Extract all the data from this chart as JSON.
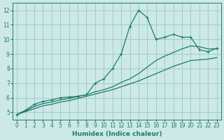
{
  "xlabel": "Humidex (Indice chaleur)",
  "bg_color": "#cce9e7",
  "line_color": "#1f7a6d",
  "grid_color": "#a0ccc8",
  "xlim": [
    -0.5,
    23.5
  ],
  "ylim": [
    4.5,
    12.5
  ],
  "xticks": [
    0,
    1,
    2,
    3,
    4,
    5,
    6,
    7,
    8,
    9,
    10,
    11,
    12,
    13,
    14,
    15,
    16,
    17,
    18,
    19,
    20,
    21,
    22,
    23
  ],
  "yticks": [
    5,
    6,
    7,
    8,
    9,
    10,
    11,
    12
  ],
  "series": [
    {
      "x": [
        0,
        1,
        2,
        3,
        4,
        5,
        6,
        7,
        8,
        9,
        10,
        11,
        12,
        13,
        14,
        15,
        16,
        17,
        18,
        19,
        20,
        21,
        22,
        23
      ],
      "y": [
        4.85,
        5.15,
        5.55,
        5.75,
        5.85,
        6.0,
        6.05,
        6.1,
        6.2,
        7.0,
        7.3,
        8.0,
        9.0,
        10.9,
        12.0,
        11.5,
        10.0,
        10.15,
        10.35,
        10.15,
        10.15,
        9.3,
        9.15,
        9.4
      ],
      "marker": true
    },
    {
      "x": [
        0,
        1,
        2,
        3,
        4,
        5,
        6,
        7,
        8,
        9,
        10,
        11,
        12,
        13,
        14,
        15,
        16,
        17,
        18,
        19,
        20,
        21,
        22,
        23
      ],
      "y": [
        4.85,
        5.1,
        5.4,
        5.6,
        5.7,
        5.85,
        5.95,
        6.1,
        6.2,
        6.4,
        6.55,
        6.75,
        7.05,
        7.3,
        7.65,
        8.1,
        8.55,
        8.85,
        9.1,
        9.35,
        9.55,
        9.5,
        9.35,
        9.35
      ],
      "marker": false
    },
    {
      "x": [
        0,
        1,
        2,
        3,
        4,
        5,
        6,
        7,
        8,
        9,
        10,
        11,
        12,
        13,
        14,
        15,
        16,
        17,
        18,
        19,
        20,
        21,
        22,
        23
      ],
      "y": [
        4.85,
        5.05,
        5.25,
        5.45,
        5.55,
        5.7,
        5.8,
        5.95,
        6.1,
        6.25,
        6.4,
        6.55,
        6.75,
        6.95,
        7.15,
        7.4,
        7.65,
        7.9,
        8.15,
        8.35,
        8.55,
        8.6,
        8.65,
        8.75
      ],
      "marker": false
    }
  ]
}
